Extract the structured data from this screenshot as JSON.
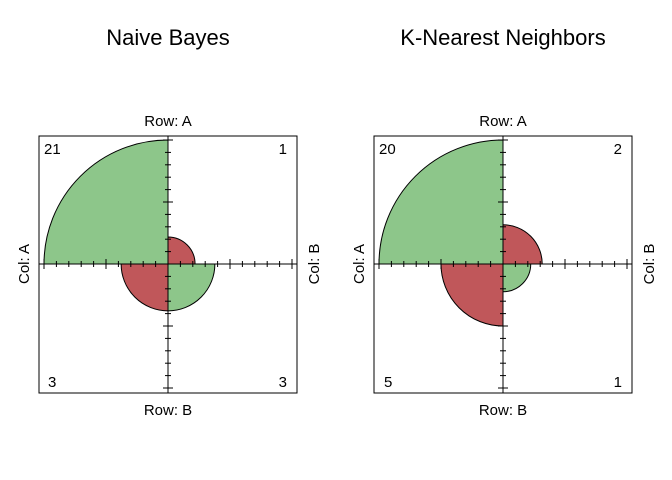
{
  "chart_data": [
    {
      "type": "fourfold",
      "title": "Naive Bayes",
      "row_label_top": "Row: A",
      "row_label_bottom": "Row: B",
      "col_label_left": "Col: A",
      "col_label_right": "Col: B",
      "cells": {
        "top_left": 21,
        "top_right": 1,
        "bottom_left": 3,
        "bottom_right": 3
      },
      "colors": {
        "correct": "#8dc68a",
        "incorrect": "#c0575a"
      }
    },
    {
      "type": "fourfold",
      "title": "K-Nearest Neighbors",
      "row_label_top": "Row: A",
      "row_label_bottom": "Row: B",
      "col_label_left": "Col: A",
      "col_label_right": "Col: B",
      "cells": {
        "top_left": 20,
        "top_right": 2,
        "bottom_left": 5,
        "bottom_right": 1
      },
      "colors": {
        "correct": "#8dc68a",
        "incorrect": "#c0575a"
      }
    }
  ]
}
